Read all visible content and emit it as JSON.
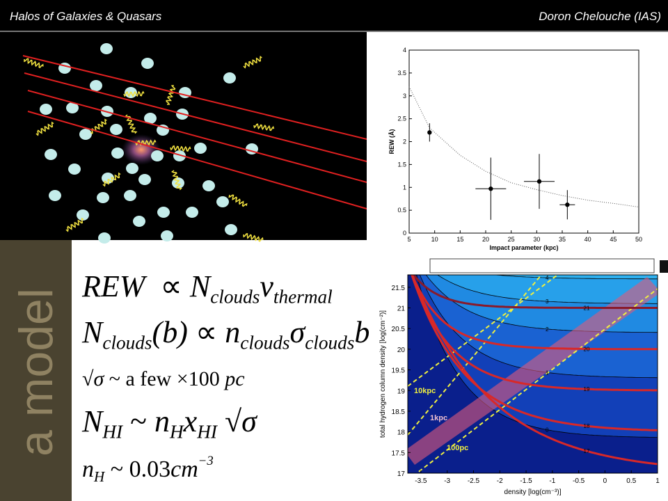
{
  "header": {
    "title": "Halos of Galaxies & Quasars",
    "author": "Doron Chelouche (IAS)"
  },
  "side_label": "a model",
  "equations": [
    [
      "REW",
      "∝",
      "N",
      "clouds",
      "v",
      "thermal"
    ],
    [
      "N",
      "clouds",
      "(b)",
      "∝",
      "n",
      "clouds",
      "σ",
      "clouds",
      "b"
    ],
    [
      "√σ",
      "~ a few ×100",
      "pc"
    ],
    [
      "N",
      "HI",
      "~",
      "n",
      "H",
      "x",
      "HI",
      "√σ"
    ],
    [
      "n",
      "H",
      "~ 0.03",
      "cm",
      "−3"
    ]
  ],
  "chart_data": {
    "type": "scatter",
    "x_label": "Impact parameter (kpc)",
    "y_label": "REW (Å)",
    "x": [
      9,
      21,
      30.5,
      36
    ],
    "values": [
      2.2,
      0.97,
      1.13,
      0.62
    ],
    "yerr": [
      0.2,
      0.68,
      0.6,
      0.32
    ],
    "xerr": [
      0,
      3,
      3,
      1.5
    ],
    "fit": {
      "x": [
        5,
        9,
        15,
        20,
        25,
        30,
        35,
        40,
        45,
        50
      ],
      "values": [
        3.2,
        2.3,
        1.7,
        1.35,
        1.1,
        0.95,
        0.82,
        0.72,
        0.65,
        0.57
      ]
    },
    "xlim": [
      5,
      50
    ],
    "xticks": [
      5,
      10,
      15,
      20,
      25,
      30,
      35,
      40,
      45,
      50
    ],
    "ylim": [
      0,
      4
    ],
    "yticks": [
      0,
      0.5,
      1,
      1.5,
      2,
      2.5,
      3,
      3.5,
      4
    ]
  },
  "contour": {
    "x_label": "density [log(cm⁻³)]",
    "y_label": "total hydrogen column density [log(cm⁻²)]",
    "xlim": [
      -3.75,
      1
    ],
    "xticks": [
      -3.5,
      -3,
      -2.5,
      -2,
      -1.5,
      -1,
      -0.5,
      0,
      0.5,
      1
    ],
    "ylim": [
      17,
      21.8
    ],
    "yticks": [
      17,
      17.5,
      18,
      18.5,
      19,
      19.5,
      20,
      20.5,
      21,
      21.5
    ],
    "red_labels": [
      21,
      20,
      19,
      18,
      17
    ],
    "black_labels": [
      4,
      3,
      2,
      1,
      0
    ],
    "annotations": [
      "10kpc",
      "1kpc",
      "100pc"
    ]
  }
}
